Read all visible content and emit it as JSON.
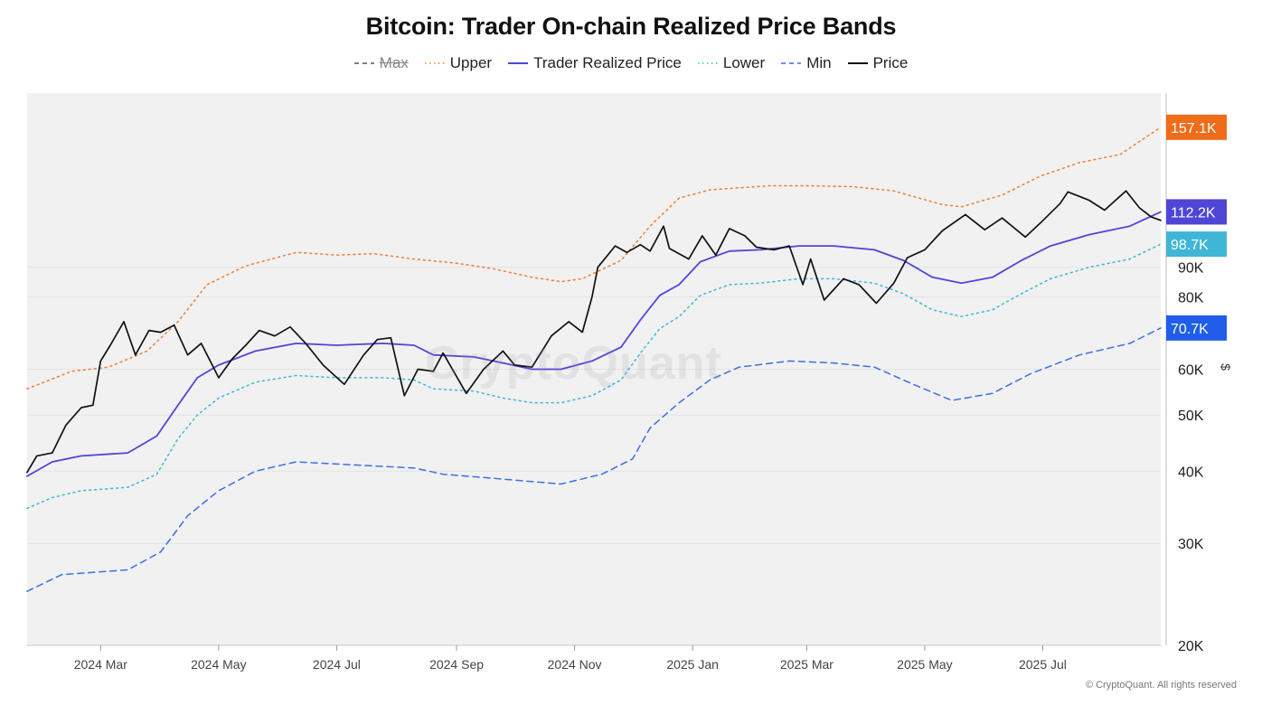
{
  "title": "Bitcoin: Trader On-chain Realized Price Bands",
  "legend": [
    {
      "label": "Max",
      "style": "dashed",
      "color": "#555555",
      "hidden": true
    },
    {
      "label": "Upper",
      "style": "dotted",
      "color": "#e8803a",
      "hidden": false
    },
    {
      "label": "Trader Realized Price",
      "style": "solid",
      "color": "#4f46d6",
      "hidden": false
    },
    {
      "label": "Lower",
      "style": "dotted",
      "color": "#3fb6d6",
      "hidden": false
    },
    {
      "label": "Min",
      "style": "dashed",
      "color": "#3b6fe0",
      "hidden": false
    },
    {
      "label": "Price",
      "style": "solid",
      "color": "#111111",
      "hidden": false
    }
  ],
  "watermark": "CryptoQuant",
  "unit_label": "$",
  "copyright": "© CryptoQuant. All rights reserved",
  "chart_data": {
    "type": "line",
    "y_scale": "log",
    "ylim": [
      20000,
      180000
    ],
    "y_ticks": [
      {
        "value": 20000,
        "label": "20K"
      },
      {
        "value": 30000,
        "label": "30K"
      },
      {
        "value": 40000,
        "label": "40K"
      },
      {
        "value": 50000,
        "label": "50K"
      },
      {
        "value": 60000,
        "label": "60K"
      },
      {
        "value": 80000,
        "label": "80K"
      },
      {
        "value": 90000,
        "label": "90K"
      }
    ],
    "x_range": [
      "2024-01-23",
      "2025-08-31"
    ],
    "x_ticks": [
      {
        "date": "2024-03-01",
        "label": "2024 Mar"
      },
      {
        "date": "2024-05-01",
        "label": "2024 May"
      },
      {
        "date": "2024-07-01",
        "label": "2024 Jul"
      },
      {
        "date": "2024-09-01",
        "label": "2024 Sep"
      },
      {
        "date": "2024-11-01",
        "label": "2024 Nov"
      },
      {
        "date": "2025-01-01",
        "label": "2025 Jan"
      },
      {
        "date": "2025-03-01",
        "label": "2025 Mar"
      },
      {
        "date": "2025-05-01",
        "label": "2025 May"
      },
      {
        "date": "2025-07-01",
        "label": "2025 Jul"
      }
    ],
    "end_labels": [
      {
        "series": "Upper",
        "label": "157.1K",
        "value": 157100,
        "color": "#ef6c1a"
      },
      {
        "series": "Trader Realized Price",
        "label": "112.2K",
        "value": 112200,
        "color": "#4f46d6"
      },
      {
        "series": "Lower",
        "label": "98.7K",
        "value": 98700,
        "color": "#3fb6d6"
      },
      {
        "series": "Min",
        "label": "70.7K",
        "value": 70700,
        "color": "#1f5ee8"
      }
    ],
    "series": [
      {
        "name": "Upper",
        "color": "#e8803a",
        "dash": "2,4",
        "points": [
          [
            "2024-01-23",
            55500
          ],
          [
            "2024-02-15",
            59500
          ],
          [
            "2024-03-05",
            60500
          ],
          [
            "2024-03-25",
            64500
          ],
          [
            "2024-04-10",
            72500
          ],
          [
            "2024-04-25",
            84000
          ],
          [
            "2024-05-15",
            90500
          ],
          [
            "2024-06-10",
            95500
          ],
          [
            "2024-07-01",
            94500
          ],
          [
            "2024-07-20",
            95000
          ],
          [
            "2024-08-10",
            93000
          ],
          [
            "2024-09-01",
            91500
          ],
          [
            "2024-09-20",
            89500
          ],
          [
            "2024-10-10",
            86500
          ],
          [
            "2024-10-25",
            85000
          ],
          [
            "2024-11-05",
            86000
          ],
          [
            "2024-11-25",
            92500
          ],
          [
            "2024-12-10",
            106000
          ],
          [
            "2024-12-25",
            118500
          ],
          [
            "2025-01-10",
            122500
          ],
          [
            "2025-02-10",
            124500
          ],
          [
            "2025-03-01",
            124500
          ],
          [
            "2025-03-25",
            124000
          ],
          [
            "2025-04-15",
            122000
          ],
          [
            "2025-05-10",
            115500
          ],
          [
            "2025-05-20",
            114500
          ],
          [
            "2025-06-10",
            120000
          ],
          [
            "2025-06-30",
            129500
          ],
          [
            "2025-07-20",
            136500
          ],
          [
            "2025-08-10",
            141000
          ],
          [
            "2025-08-31",
            157100
          ]
        ]
      },
      {
        "name": "Trader Realized Price",
        "color": "#4f46d6",
        "dash": "",
        "points": [
          [
            "2024-01-23",
            39200
          ],
          [
            "2024-02-05",
            41500
          ],
          [
            "2024-02-20",
            42500
          ],
          [
            "2024-03-15",
            43000
          ],
          [
            "2024-03-30",
            46000
          ],
          [
            "2024-04-10",
            52000
          ],
          [
            "2024-04-20",
            58000
          ],
          [
            "2024-05-01",
            61000
          ],
          [
            "2024-05-20",
            64500
          ],
          [
            "2024-06-10",
            66500
          ],
          [
            "2024-07-01",
            66000
          ],
          [
            "2024-07-25",
            66500
          ],
          [
            "2024-08-10",
            66000
          ],
          [
            "2024-08-20",
            63500
          ],
          [
            "2024-09-10",
            63000
          ],
          [
            "2024-09-25",
            61500
          ],
          [
            "2024-10-10",
            60000
          ],
          [
            "2024-10-25",
            60000
          ],
          [
            "2024-11-10",
            62000
          ],
          [
            "2024-11-25",
            65500
          ],
          [
            "2024-12-05",
            73000
          ],
          [
            "2024-12-15",
            80500
          ],
          [
            "2024-12-25",
            84000
          ],
          [
            "2025-01-05",
            92000
          ],
          [
            "2025-01-20",
            96000
          ],
          [
            "2025-02-05",
            96500
          ],
          [
            "2025-02-25",
            98000
          ],
          [
            "2025-03-15",
            98000
          ],
          [
            "2025-04-05",
            96500
          ],
          [
            "2025-04-20",
            92500
          ],
          [
            "2025-05-05",
            86500
          ],
          [
            "2025-05-20",
            84500
          ],
          [
            "2025-06-05",
            86500
          ],
          [
            "2025-06-20",
            92500
          ],
          [
            "2025-07-05",
            98000
          ],
          [
            "2025-07-25",
            102500
          ],
          [
            "2025-08-15",
            106000
          ],
          [
            "2025-08-31",
            112200
          ]
        ]
      },
      {
        "name": "Lower",
        "color": "#3fb6d6",
        "dash": "2,4",
        "points": [
          [
            "2024-01-23",
            34500
          ],
          [
            "2024-02-05",
            36000
          ],
          [
            "2024-02-20",
            37000
          ],
          [
            "2024-03-15",
            37500
          ],
          [
            "2024-03-30",
            39500
          ],
          [
            "2024-04-10",
            45500
          ],
          [
            "2024-04-20",
            50000
          ],
          [
            "2024-05-01",
            53500
          ],
          [
            "2024-05-20",
            57000
          ],
          [
            "2024-06-10",
            58500
          ],
          [
            "2024-07-01",
            58000
          ],
          [
            "2024-07-25",
            58000
          ],
          [
            "2024-08-10",
            57500
          ],
          [
            "2024-08-20",
            55500
          ],
          [
            "2024-09-10",
            55000
          ],
          [
            "2024-09-25",
            53500
          ],
          [
            "2024-10-10",
            52500
          ],
          [
            "2024-10-25",
            52500
          ],
          [
            "2024-11-10",
            54000
          ],
          [
            "2024-11-25",
            57500
          ],
          [
            "2024-12-05",
            64000
          ],
          [
            "2024-12-15",
            70500
          ],
          [
            "2024-12-25",
            74000
          ],
          [
            "2025-01-05",
            80500
          ],
          [
            "2025-01-20",
            84000
          ],
          [
            "2025-02-05",
            84500
          ],
          [
            "2025-02-25",
            86000
          ],
          [
            "2025-03-15",
            86000
          ],
          [
            "2025-04-05",
            84500
          ],
          [
            "2025-04-20",
            81000
          ],
          [
            "2025-05-05",
            76000
          ],
          [
            "2025-05-20",
            74000
          ],
          [
            "2025-06-05",
            76000
          ],
          [
            "2025-06-20",
            81000
          ],
          [
            "2025-07-05",
            86000
          ],
          [
            "2025-07-25",
            90000
          ],
          [
            "2025-08-15",
            93000
          ],
          [
            "2025-08-31",
            98700
          ]
        ]
      },
      {
        "name": "Min",
        "color": "#3b6fe0",
        "dash": "7,5",
        "points": [
          [
            "2024-01-23",
            24800
          ],
          [
            "2024-02-10",
            26500
          ],
          [
            "2024-03-15",
            27000
          ],
          [
            "2024-04-01",
            29000
          ],
          [
            "2024-04-15",
            33500
          ],
          [
            "2024-05-01",
            37000
          ],
          [
            "2024-05-20",
            40000
          ],
          [
            "2024-06-10",
            41500
          ],
          [
            "2024-07-10",
            41000
          ],
          [
            "2024-08-10",
            40500
          ],
          [
            "2024-08-25",
            39500
          ],
          [
            "2024-09-15",
            39000
          ],
          [
            "2024-10-05",
            38500
          ],
          [
            "2024-10-25",
            38000
          ],
          [
            "2024-11-15",
            39500
          ],
          [
            "2024-12-01",
            42000
          ],
          [
            "2024-12-10",
            47500
          ],
          [
            "2024-12-25",
            52500
          ],
          [
            "2025-01-10",
            57500
          ],
          [
            "2025-01-25",
            60500
          ],
          [
            "2025-02-20",
            62000
          ],
          [
            "2025-03-15",
            61500
          ],
          [
            "2025-04-05",
            60500
          ],
          [
            "2025-04-25",
            56500
          ],
          [
            "2025-05-15",
            53000
          ],
          [
            "2025-06-05",
            54500
          ],
          [
            "2025-06-25",
            59000
          ],
          [
            "2025-07-20",
            63500
          ],
          [
            "2025-08-15",
            66500
          ],
          [
            "2025-08-31",
            70700
          ]
        ]
      },
      {
        "name": "Price",
        "color": "#111111",
        "dash": "",
        "points": [
          [
            "2024-01-23",
            39800
          ],
          [
            "2024-01-28",
            42500
          ],
          [
            "2024-02-05",
            43000
          ],
          [
            "2024-02-12",
            48000
          ],
          [
            "2024-02-20",
            51500
          ],
          [
            "2024-02-26",
            52000
          ],
          [
            "2024-03-01",
            62000
          ],
          [
            "2024-03-06",
            66000
          ],
          [
            "2024-03-13",
            72500
          ],
          [
            "2024-03-19",
            63500
          ],
          [
            "2024-03-26",
            70000
          ],
          [
            "2024-04-01",
            69500
          ],
          [
            "2024-04-08",
            71500
          ],
          [
            "2024-04-15",
            63500
          ],
          [
            "2024-04-22",
            66500
          ],
          [
            "2024-05-01",
            58000
          ],
          [
            "2024-05-08",
            62500
          ],
          [
            "2024-05-15",
            66000
          ],
          [
            "2024-05-22",
            70000
          ],
          [
            "2024-05-30",
            68500
          ],
          [
            "2024-06-07",
            71000
          ],
          [
            "2024-06-15",
            66500
          ],
          [
            "2024-06-24",
            61000
          ],
          [
            "2024-07-05",
            56500
          ],
          [
            "2024-07-15",
            63500
          ],
          [
            "2024-07-22",
            67500
          ],
          [
            "2024-07-29",
            68000
          ],
          [
            "2024-08-05",
            54000
          ],
          [
            "2024-08-12",
            60000
          ],
          [
            "2024-08-20",
            59500
          ],
          [
            "2024-08-25",
            64000
          ],
          [
            "2024-09-06",
            54500
          ],
          [
            "2024-09-15",
            60000
          ],
          [
            "2024-09-25",
            64500
          ],
          [
            "2024-10-01",
            61000
          ],
          [
            "2024-10-10",
            60500
          ],
          [
            "2024-10-20",
            68500
          ],
          [
            "2024-10-29",
            72500
          ],
          [
            "2024-11-05",
            69500
          ],
          [
            "2024-11-10",
            80000
          ],
          [
            "2024-11-13",
            90000
          ],
          [
            "2024-11-22",
            98000
          ],
          [
            "2024-11-28",
            95500
          ],
          [
            "2024-12-05",
            98500
          ],
          [
            "2024-12-10",
            96000
          ],
          [
            "2024-12-17",
            106000
          ],
          [
            "2024-12-20",
            97000
          ],
          [
            "2024-12-30",
            93000
          ],
          [
            "2025-01-06",
            102000
          ],
          [
            "2025-01-13",
            94500
          ],
          [
            "2025-01-20",
            105000
          ],
          [
            "2025-01-28",
            102000
          ],
          [
            "2025-02-03",
            97500
          ],
          [
            "2025-02-12",
            96500
          ],
          [
            "2025-02-20",
            98000
          ],
          [
            "2025-02-27",
            84000
          ],
          [
            "2025-03-03",
            93000
          ],
          [
            "2025-03-10",
            79000
          ],
          [
            "2025-03-20",
            86000
          ],
          [
            "2025-03-28",
            84000
          ],
          [
            "2025-04-06",
            78000
          ],
          [
            "2025-04-15",
            84500
          ],
          [
            "2025-04-22",
            93500
          ],
          [
            "2025-05-01",
            96500
          ],
          [
            "2025-05-10",
            104000
          ],
          [
            "2025-05-22",
            111000
          ],
          [
            "2025-06-01",
            104500
          ],
          [
            "2025-06-10",
            109500
          ],
          [
            "2025-06-22",
            101500
          ],
          [
            "2025-06-30",
            107500
          ],
          [
            "2025-07-10",
            116000
          ],
          [
            "2025-07-14",
            121500
          ],
          [
            "2025-07-25",
            117500
          ],
          [
            "2025-08-02",
            113000
          ],
          [
            "2025-08-13",
            122000
          ],
          [
            "2025-08-20",
            114000
          ],
          [
            "2025-08-26",
            110000
          ],
          [
            "2025-08-31",
            108500
          ]
        ]
      }
    ]
  }
}
